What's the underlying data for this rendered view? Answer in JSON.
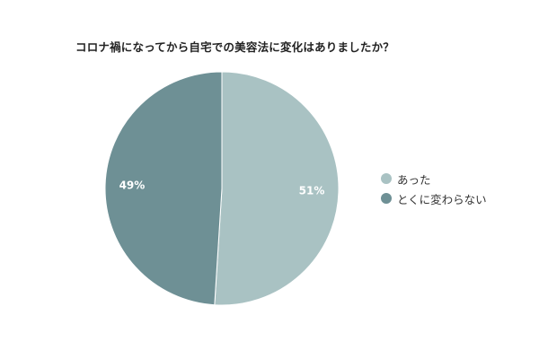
{
  "chart_data": {
    "type": "pie",
    "title": "コロナ禍になってから自宅での美容法に変化はありましたか？",
    "categories": [
      "あった",
      "とくに変わらない"
    ],
    "values": [
      51,
      49
    ],
    "data_labels": [
      "51%",
      "49%"
    ],
    "colors": [
      "#a9c2c3",
      "#6e9095"
    ],
    "legend_position": "right"
  },
  "colors": {
    "background": "#ffffff",
    "label_text": "#ffffff",
    "slice_border": "#ffffff"
  }
}
